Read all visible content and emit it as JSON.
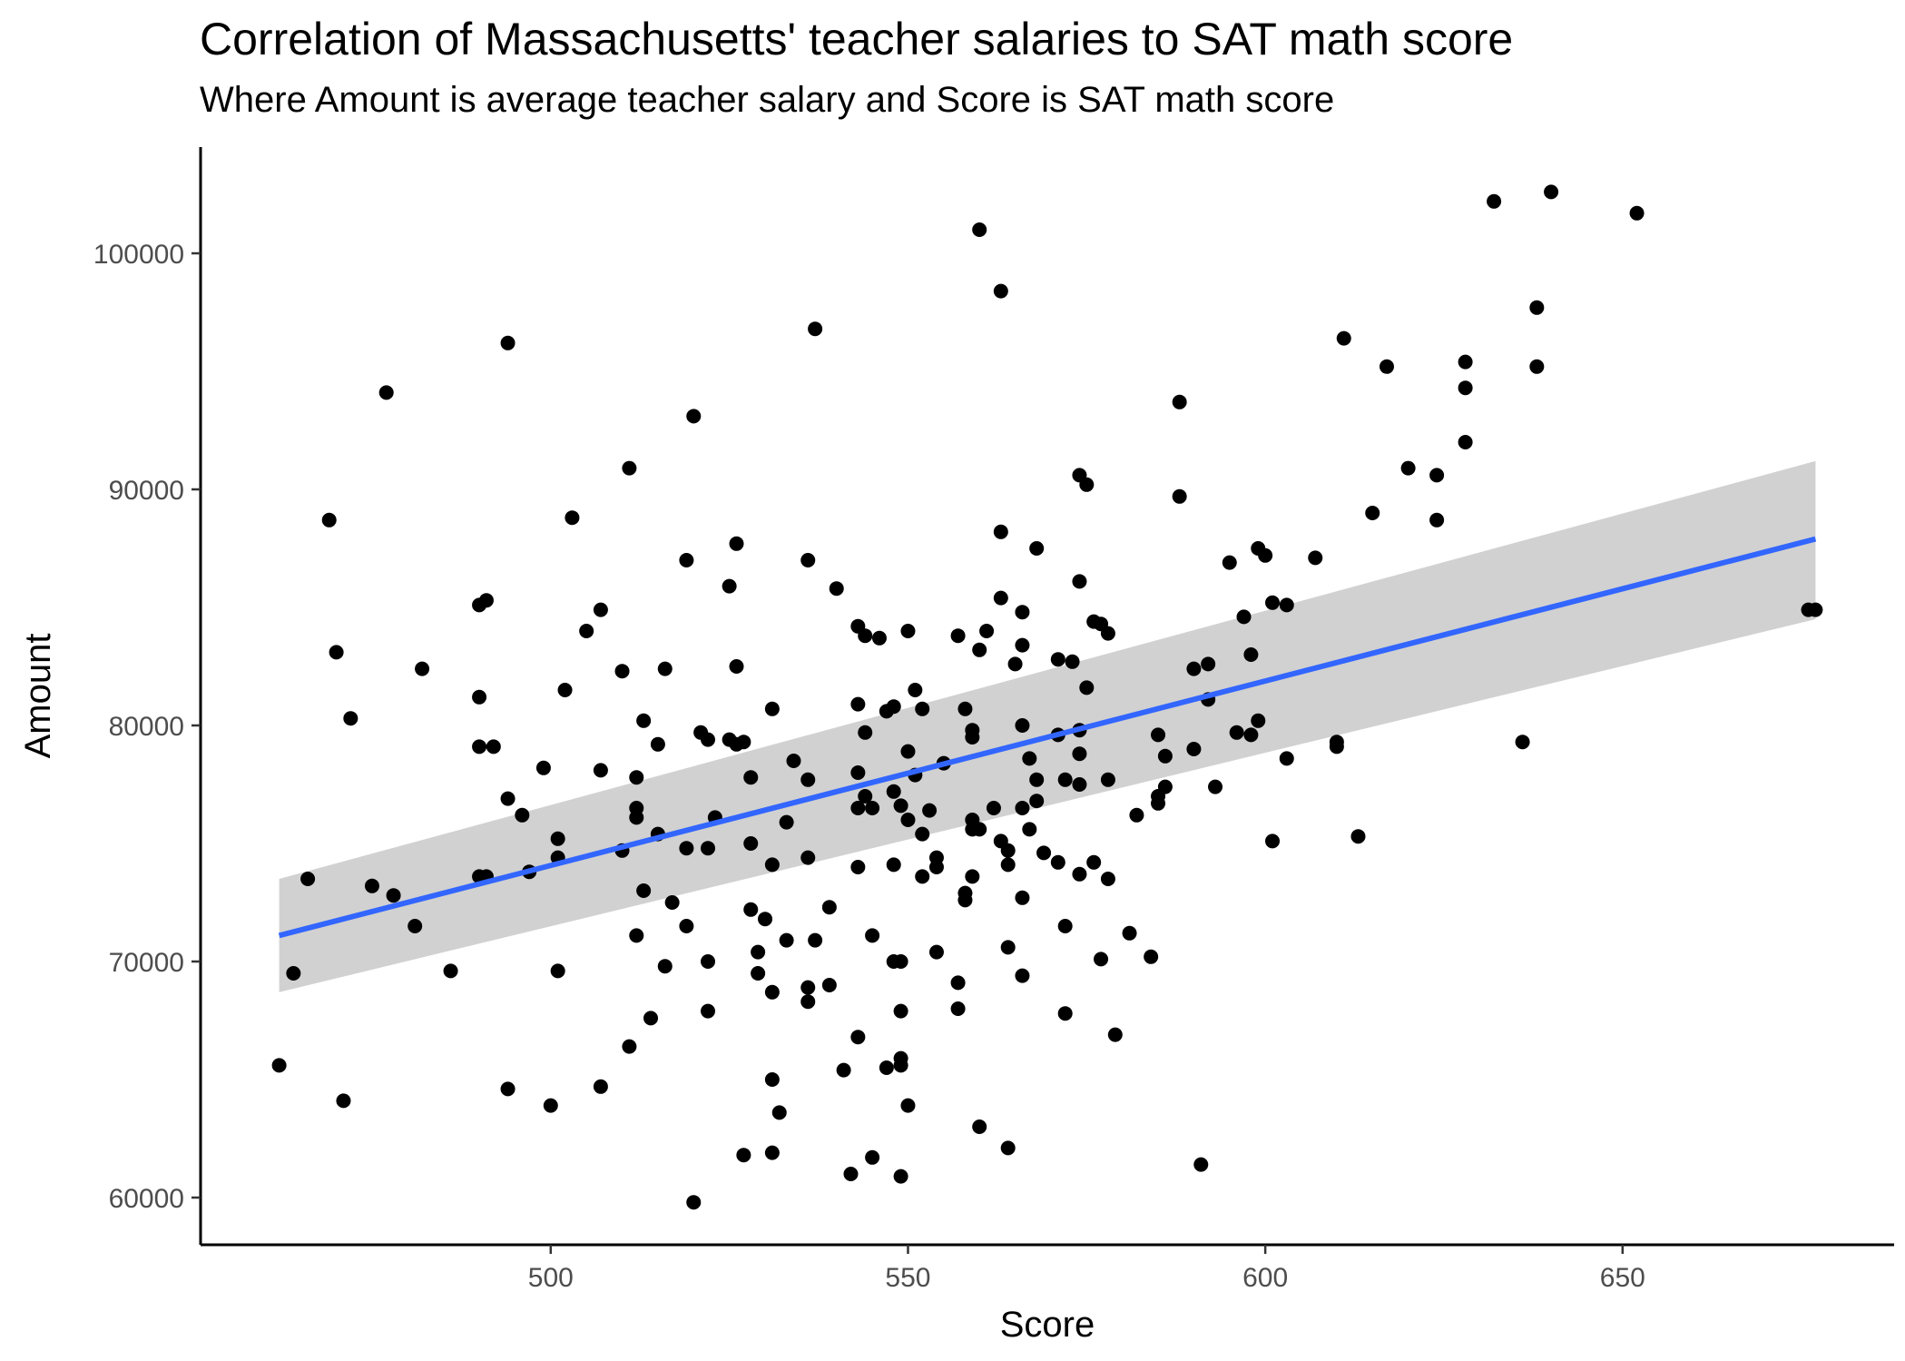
{
  "chart_data": {
    "type": "scatter",
    "title": "Correlation of Massachusetts' teacher salaries to SAT math score",
    "subtitle": "Where Amount is average teacher salary and Score is SAT math score",
    "xlabel": "Score",
    "ylabel": "Amount",
    "xlim": [
      451,
      688
    ],
    "ylim": [
      58000,
      104500
    ],
    "x_ticks": [
      500,
      550,
      600,
      650
    ],
    "y_ticks": [
      60000,
      70000,
      80000,
      90000,
      100000
    ],
    "grid": false,
    "legend": "none",
    "point_color": "#000000",
    "trend_color": "#3366FF",
    "band_color": "#CCCCCC",
    "trend_line": {
      "x": [
        462,
        677
      ],
      "y": [
        71100,
        87900
      ],
      "ci_lower": [
        68700,
        84500
      ],
      "ci_upper": [
        73500,
        91200
      ]
    },
    "points": [
      [
        462,
        65600
      ],
      [
        464,
        69500
      ],
      [
        466,
        73500
      ],
      [
        469,
        88700
      ],
      [
        470,
        83100
      ],
      [
        471,
        64100
      ],
      [
        472,
        80300
      ],
      [
        475,
        73200
      ],
      [
        477,
        94100
      ],
      [
        478,
        72800
      ],
      [
        481,
        71500
      ],
      [
        482,
        82400
      ],
      [
        486,
        69600
      ],
      [
        490,
        85100
      ],
      [
        490,
        81200
      ],
      [
        490,
        79100
      ],
      [
        490,
        73600
      ],
      [
        491,
        85300
      ],
      [
        491,
        73600
      ],
      [
        492,
        79100
      ],
      [
        494,
        96200
      ],
      [
        494,
        76900
      ],
      [
        494,
        64600
      ],
      [
        496,
        76200
      ],
      [
        497,
        73800
      ],
      [
        499,
        78200
      ],
      [
        500,
        63900
      ],
      [
        501,
        75200
      ],
      [
        501,
        74400
      ],
      [
        501,
        69600
      ],
      [
        502,
        81500
      ],
      [
        503,
        88800
      ],
      [
        505,
        84000
      ],
      [
        507,
        84900
      ],
      [
        507,
        78100
      ],
      [
        507,
        64700
      ],
      [
        510,
        82300
      ],
      [
        510,
        74700
      ],
      [
        511,
        90900
      ],
      [
        511,
        66400
      ],
      [
        512,
        77800
      ],
      [
        512,
        76500
      ],
      [
        512,
        76100
      ],
      [
        512,
        71100
      ],
      [
        513,
        80200
      ],
      [
        513,
        73000
      ],
      [
        514,
        67600
      ],
      [
        515,
        79200
      ],
      [
        515,
        75400
      ],
      [
        516,
        82400
      ],
      [
        516,
        69800
      ],
      [
        517,
        72500
      ],
      [
        519,
        87000
      ],
      [
        519,
        74800
      ],
      [
        519,
        71500
      ],
      [
        520,
        93100
      ],
      [
        520,
        59800
      ],
      [
        521,
        79700
      ],
      [
        522,
        79400
      ],
      [
        522,
        74800
      ],
      [
        522,
        70000
      ],
      [
        522,
        67900
      ],
      [
        523,
        76100
      ],
      [
        525,
        85900
      ],
      [
        525,
        79400
      ],
      [
        526,
        87700
      ],
      [
        526,
        82500
      ],
      [
        526,
        79200
      ],
      [
        527,
        79300
      ],
      [
        527,
        61800
      ],
      [
        528,
        77800
      ],
      [
        528,
        75000
      ],
      [
        528,
        72200
      ],
      [
        529,
        70400
      ],
      [
        529,
        69500
      ],
      [
        530,
        71800
      ],
      [
        531,
        80700
      ],
      [
        531,
        74100
      ],
      [
        531,
        68700
      ],
      [
        531,
        65000
      ],
      [
        531,
        61900
      ],
      [
        532,
        63600
      ],
      [
        533,
        75900
      ],
      [
        533,
        70900
      ],
      [
        534,
        78500
      ],
      [
        536,
        87000
      ],
      [
        536,
        77700
      ],
      [
        536,
        74400
      ],
      [
        536,
        68900
      ],
      [
        536,
        68300
      ],
      [
        537,
        96800
      ],
      [
        537,
        70900
      ],
      [
        539,
        72300
      ],
      [
        539,
        69000
      ],
      [
        540,
        85800
      ],
      [
        541,
        65400
      ],
      [
        542,
        61000
      ],
      [
        543,
        84200
      ],
      [
        543,
        80900
      ],
      [
        543,
        78000
      ],
      [
        543,
        76500
      ],
      [
        543,
        74000
      ],
      [
        543,
        66800
      ],
      [
        544,
        83800
      ],
      [
        544,
        79700
      ],
      [
        544,
        77000
      ],
      [
        545,
        76500
      ],
      [
        545,
        71100
      ],
      [
        545,
        61700
      ],
      [
        546,
        83700
      ],
      [
        547,
        80600
      ],
      [
        547,
        65500
      ],
      [
        548,
        80800
      ],
      [
        548,
        77200
      ],
      [
        548,
        74100
      ],
      [
        548,
        70000
      ],
      [
        549,
        76600
      ],
      [
        549,
        67900
      ],
      [
        549,
        65900
      ],
      [
        549,
        65600
      ],
      [
        549,
        70000
      ],
      [
        549,
        60900
      ],
      [
        550,
        84000
      ],
      [
        550,
        78900
      ],
      [
        550,
        76000
      ],
      [
        550,
        63900
      ],
      [
        551,
        81500
      ],
      [
        551,
        77900
      ],
      [
        552,
        80700
      ],
      [
        552,
        75400
      ],
      [
        552,
        73600
      ],
      [
        553,
        76400
      ],
      [
        554,
        74400
      ],
      [
        554,
        74000
      ],
      [
        554,
        70400
      ],
      [
        555,
        78400
      ],
      [
        557,
        83800
      ],
      [
        557,
        69100
      ],
      [
        557,
        68000
      ],
      [
        558,
        80700
      ],
      [
        558,
        72900
      ],
      [
        558,
        72600
      ],
      [
        559,
        79800
      ],
      [
        559,
        79500
      ],
      [
        559,
        76000
      ],
      [
        559,
        75600
      ],
      [
        559,
        73600
      ],
      [
        560,
        101000
      ],
      [
        560,
        83200
      ],
      [
        560,
        75600
      ],
      [
        560,
        63000
      ],
      [
        561,
        84000
      ],
      [
        562,
        76500
      ],
      [
        563,
        98400
      ],
      [
        563,
        88200
      ],
      [
        563,
        85400
      ],
      [
        563,
        75100
      ],
      [
        564,
        74700
      ],
      [
        564,
        74100
      ],
      [
        564,
        70600
      ],
      [
        564,
        62100
      ],
      [
        565,
        82600
      ],
      [
        566,
        84800
      ],
      [
        566,
        83400
      ],
      [
        566,
        80000
      ],
      [
        566,
        76500
      ],
      [
        566,
        72700
      ],
      [
        566,
        69400
      ],
      [
        567,
        78600
      ],
      [
        567,
        75600
      ],
      [
        568,
        87500
      ],
      [
        568,
        77700
      ],
      [
        568,
        76800
      ],
      [
        569,
        74600
      ],
      [
        571,
        82800
      ],
      [
        571,
        79600
      ],
      [
        571,
        74200
      ],
      [
        572,
        77700
      ],
      [
        572,
        71500
      ],
      [
        572,
        67800
      ],
      [
        573,
        82700
      ],
      [
        574,
        90600
      ],
      [
        574,
        86100
      ],
      [
        574,
        79800
      ],
      [
        574,
        78800
      ],
      [
        574,
        77500
      ],
      [
        574,
        73700
      ],
      [
        575,
        90200
      ],
      [
        575,
        81600
      ],
      [
        576,
        84400
      ],
      [
        576,
        74200
      ],
      [
        577,
        84300
      ],
      [
        577,
        70100
      ],
      [
        578,
        83900
      ],
      [
        578,
        77700
      ],
      [
        578,
        73500
      ],
      [
        579,
        66900
      ],
      [
        581,
        71200
      ],
      [
        582,
        76200
      ],
      [
        584,
        70200
      ],
      [
        585,
        79600
      ],
      [
        585,
        77000
      ],
      [
        585,
        76700
      ],
      [
        586,
        78700
      ],
      [
        586,
        77400
      ],
      [
        588,
        93700
      ],
      [
        588,
        89700
      ],
      [
        590,
        82400
      ],
      [
        590,
        79000
      ],
      [
        591,
        61400
      ],
      [
        592,
        82600
      ],
      [
        592,
        81100
      ],
      [
        593,
        77400
      ],
      [
        595,
        86900
      ],
      [
        596,
        79700
      ],
      [
        597,
        84600
      ],
      [
        598,
        83000
      ],
      [
        598,
        79600
      ],
      [
        599,
        87500
      ],
      [
        599,
        80200
      ],
      [
        600,
        87200
      ],
      [
        601,
        85200
      ],
      [
        601,
        75100
      ],
      [
        603,
        85100
      ],
      [
        603,
        78600
      ],
      [
        607,
        87100
      ],
      [
        610,
        79300
      ],
      [
        610,
        79100
      ],
      [
        611,
        96400
      ],
      [
        613,
        75300
      ],
      [
        615,
        89000
      ],
      [
        617,
        95200
      ],
      [
        620,
        90900
      ],
      [
        624,
        90600
      ],
      [
        624,
        88700
      ],
      [
        628,
        95400
      ],
      [
        628,
        94300
      ],
      [
        628,
        92000
      ],
      [
        632,
        102200
      ],
      [
        636,
        79300
      ],
      [
        638,
        97700
      ],
      [
        638,
        95200
      ],
      [
        640,
        102600
      ],
      [
        652,
        101700
      ],
      [
        676,
        84900
      ],
      [
        677,
        84900
      ]
    ]
  }
}
